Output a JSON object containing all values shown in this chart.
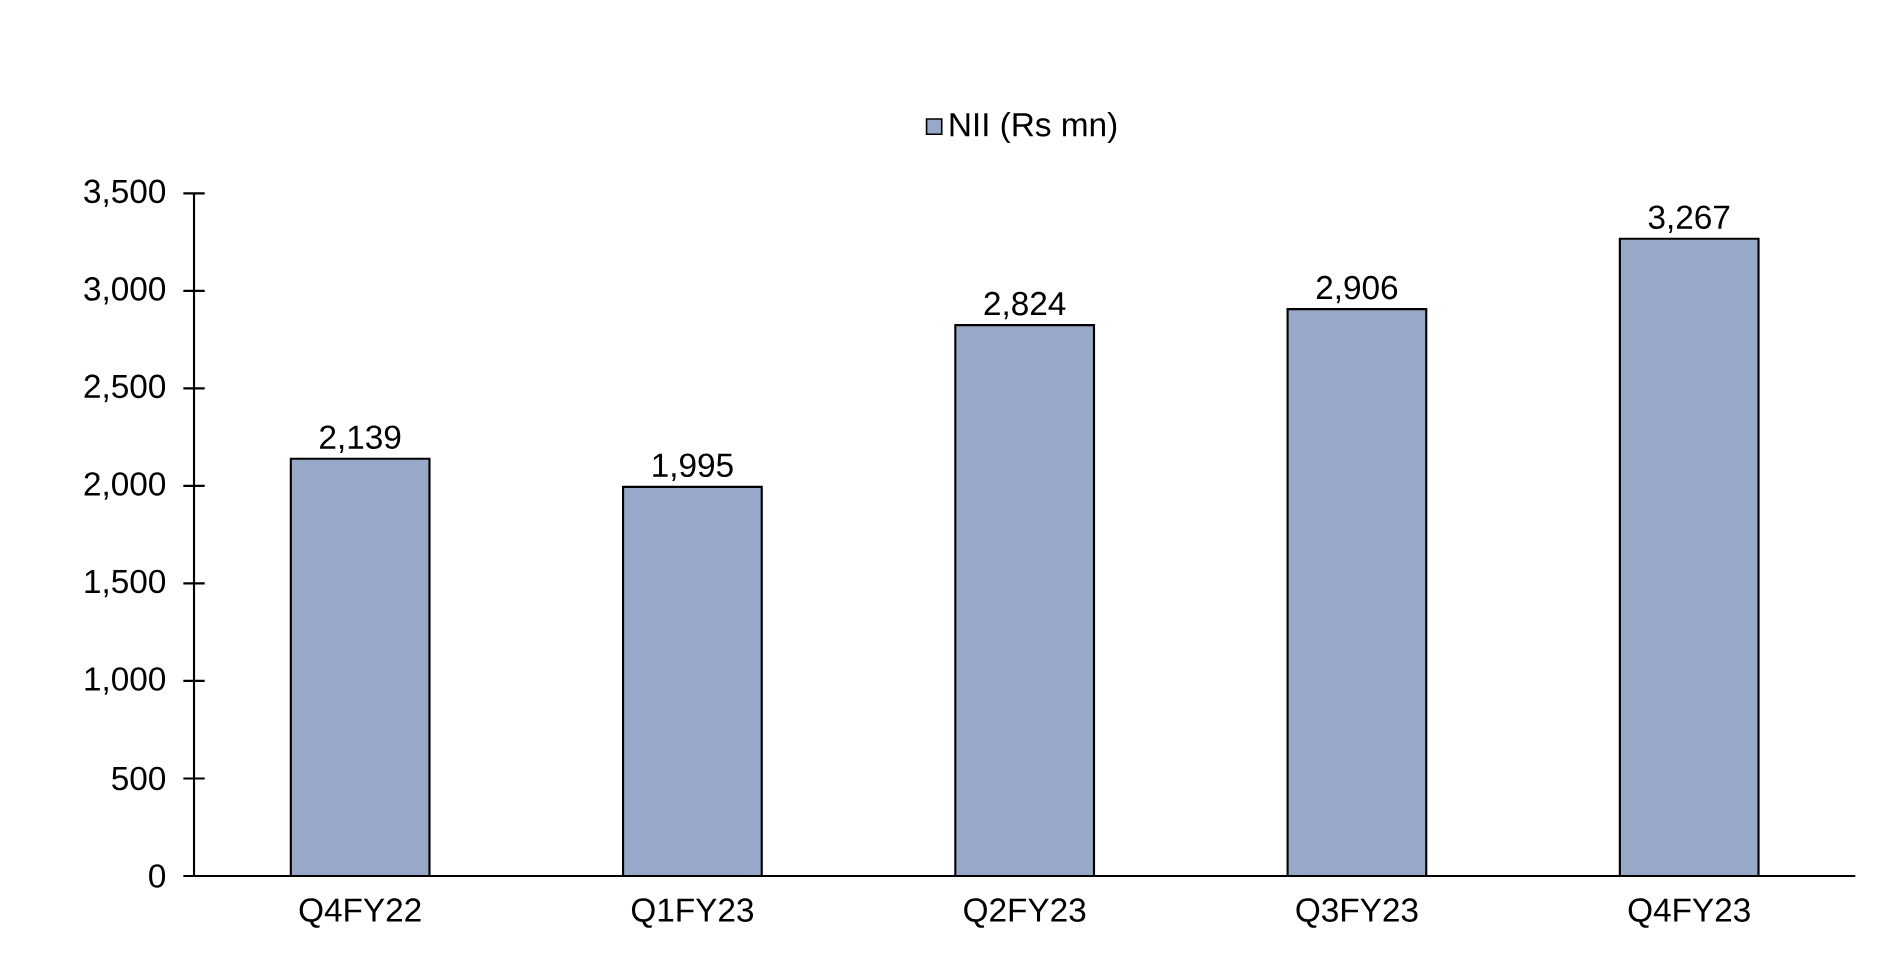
{
  "chart_data": {
    "type": "bar",
    "categories": [
      "Q4FY22",
      "Q1FY23",
      "Q2FY23",
      "Q3FY23",
      "Q4FY23"
    ],
    "series": [
      {
        "name": "NII (Rs mn)",
        "color": "#98a8c8",
        "values": [
          2139,
          1995,
          2824,
          2906,
          3267
        ],
        "value_labels": [
          "2,139",
          "1,995",
          "2,824",
          "2,906",
          "3,267"
        ]
      }
    ],
    "ylim": [
      0,
      3500
    ],
    "yticks": [
      {
        "value": 0,
        "label": "0"
      },
      {
        "value": 500,
        "label": "500"
      },
      {
        "value": 1000,
        "label": "1,000"
      },
      {
        "value": 1500,
        "label": "1,500"
      },
      {
        "value": 2000,
        "label": "2,000"
      },
      {
        "value": 2500,
        "label": "2,500"
      },
      {
        "value": 3000,
        "label": "3,000"
      },
      {
        "value": 3500,
        "label": "3,500"
      }
    ],
    "grid": false,
    "legend": "top"
  }
}
